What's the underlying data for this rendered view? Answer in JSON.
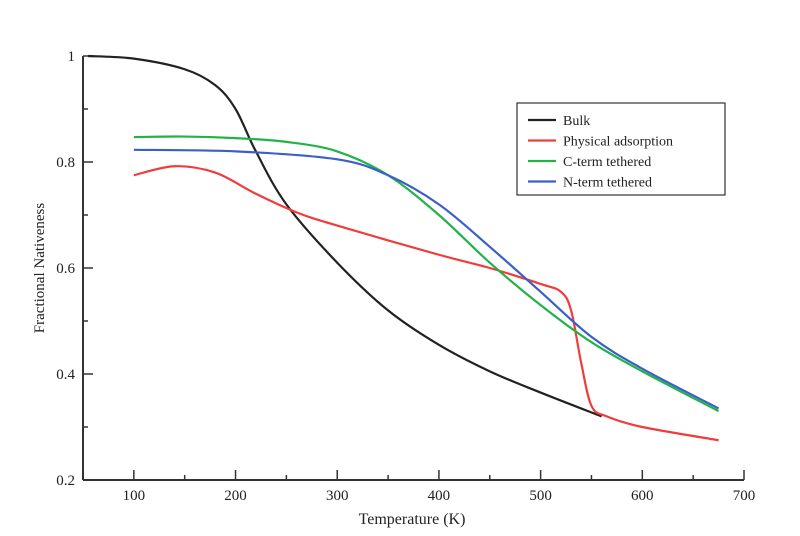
{
  "chart_data": {
    "type": "line",
    "title": "",
    "xlabel": "Temperature (K)",
    "ylabel": "Fractional Nativeness",
    "xlim": [
      50,
      700
    ],
    "ylim": [
      0.2,
      1.0
    ],
    "xticks": [
      100,
      200,
      300,
      400,
      500,
      600,
      700
    ],
    "yticks": [
      0.2,
      0.4,
      0.6,
      0.8,
      1
    ],
    "ytick_labels": [
      "0.2",
      "0.4",
      "0.6",
      "0.8",
      "1"
    ],
    "grid": false,
    "legend_placement": "top-right",
    "series": [
      {
        "name": "Bulk",
        "color": "#222222",
        "x": [
          55,
          100,
          150,
          180,
          200,
          220,
          250,
          300,
          350,
          400,
          450,
          500,
          560
        ],
        "y": [
          1.0,
          0.995,
          0.975,
          0.945,
          0.9,
          0.82,
          0.72,
          0.61,
          0.52,
          0.455,
          0.405,
          0.365,
          0.32
        ]
      },
      {
        "name": "Physical adsorption",
        "color": "#f03c3c",
        "x": [
          100,
          140,
          180,
          220,
          260,
          300,
          400,
          450,
          500,
          520,
          530,
          540,
          550,
          565,
          600,
          675
        ],
        "y": [
          0.775,
          0.792,
          0.78,
          0.74,
          0.705,
          0.68,
          0.625,
          0.6,
          0.57,
          0.555,
          0.52,
          0.42,
          0.34,
          0.32,
          0.3,
          0.275
        ]
      },
      {
        "name": "C-term tethered",
        "color": "#22b24a",
        "x": [
          100,
          150,
          200,
          250,
          300,
          350,
          400,
          450,
          500,
          550,
          600,
          675
        ],
        "y": [
          0.847,
          0.848,
          0.845,
          0.838,
          0.82,
          0.775,
          0.7,
          0.61,
          0.53,
          0.46,
          0.405,
          0.33
        ]
      },
      {
        "name": "N-term tethered",
        "color": "#3a5fc8",
        "x": [
          100,
          200,
          300,
          350,
          400,
          450,
          500,
          550,
          600,
          675
        ],
        "y": [
          0.823,
          0.82,
          0.805,
          0.775,
          0.72,
          0.64,
          0.555,
          0.47,
          0.41,
          0.335
        ]
      }
    ]
  }
}
